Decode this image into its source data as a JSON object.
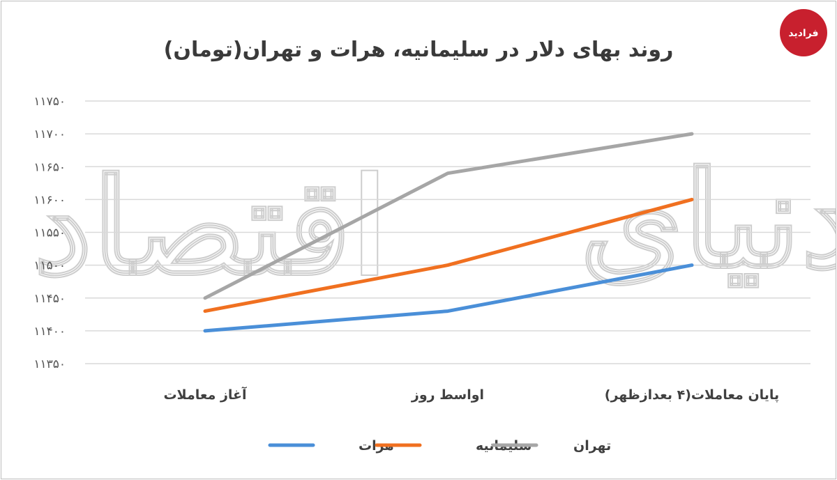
{
  "chart_data": {
    "type": "line",
    "title": "روند بهای دلار در سلیمانیه، هرات و تهران(تومان)",
    "categories": [
      "آغاز معاملات",
      "اواسط روز",
      "پایان معاملات(۴ بعدازظهر)"
    ],
    "y_ticks": [
      "۱۱۳۵۰",
      "۱۱۴۰۰",
      "۱۱۴۵۰",
      "۱۱۵۰۰",
      "۱۱۵۵۰",
      "۱۱۶۰۰",
      "۱۱۶۵۰",
      "۱۱۷۰۰",
      "۱۱۷۵۰"
    ],
    "ylim": [
      11350,
      11750
    ],
    "grid": true,
    "legend_position": "bottom",
    "series": [
      {
        "name": "هرات",
        "color": "#4a8fd8",
        "values": [
          11400,
          11430,
          11500
        ]
      },
      {
        "name": "سلیمانیه",
        "color": "#f07020",
        "values": [
          11430,
          11500,
          11600
        ]
      },
      {
        "name": "تهران",
        "color": "#a6a6a6",
        "values": [
          11450,
          11640,
          11700
        ]
      }
    ]
  },
  "watermark": {
    "text_left": "اقتصاد",
    "text_right": "دنیای"
  },
  "logo": {
    "text": "فرادید",
    "color": "#c8202e"
  }
}
